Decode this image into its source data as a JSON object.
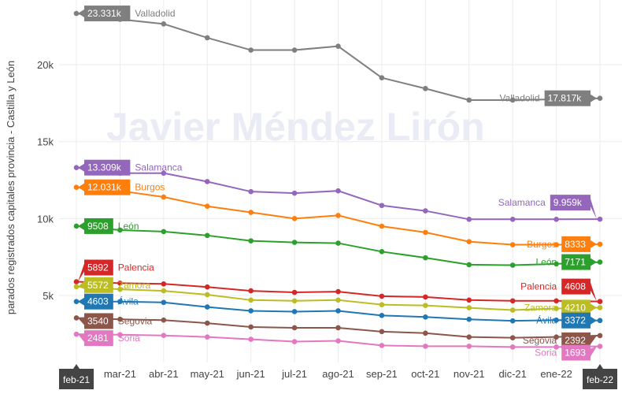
{
  "chart_data": {
    "type": "line",
    "ylabel": "parados registrados capitales provincia - Castilla y León",
    "watermark": "Javier Méndez Lirón",
    "x": [
      "feb-21",
      "mar-21",
      "abr-21",
      "may-21",
      "jun-21",
      "jul-21",
      "ago-21",
      "sep-21",
      "oct-21",
      "nov-21",
      "dic-21",
      "ene-22",
      "feb-22"
    ],
    "x_ticks_visible": [
      "mar-21",
      "abr-21",
      "may-21",
      "jun-21",
      "jul-21",
      "ago-21",
      "sep-21",
      "oct-21",
      "nov-21",
      "dic-21",
      "ene-22"
    ],
    "x_boxed": [
      "feb-21",
      "feb-22"
    ],
    "yticks": [
      5000,
      10000,
      15000,
      20000
    ],
    "ytick_labels": [
      "5k",
      "10k",
      "15k",
      "20k"
    ],
    "ylim": [
      900,
      24000
    ],
    "grid": true,
    "legend": "none",
    "series": [
      {
        "name": "Valladolid",
        "color": "#7f7f7f",
        "values": [
          23331,
          22950,
          22650,
          21750,
          20950,
          20950,
          21200,
          19150,
          18450,
          17700,
          17700,
          17750,
          17817
        ],
        "start_label": "23.331k",
        "end_label": "17.817k"
      },
      {
        "name": "Salamanca",
        "color": "#9467bd",
        "values": [
          13309,
          12950,
          12950,
          12400,
          11750,
          11650,
          11800,
          10850,
          10500,
          9950,
          9950,
          9950,
          9959
        ],
        "start_label": "13.309k",
        "end_label": "9.959k"
      },
      {
        "name": "Burgos",
        "color": "#ff7f0e",
        "values": [
          12031,
          11800,
          11400,
          10800,
          10400,
          10000,
          10200,
          9500,
          9100,
          8500,
          8300,
          8300,
          8333
        ],
        "start_label": "12.031k",
        "end_label": "8333"
      },
      {
        "name": "León",
        "color": "#2ca02c",
        "values": [
          9508,
          9250,
          9150,
          8900,
          8550,
          8450,
          8400,
          7850,
          7450,
          7000,
          6970,
          7050,
          7171
        ],
        "start_label": "9508",
        "end_label": "7171"
      },
      {
        "name": "Palencia",
        "color": "#d62728",
        "values": [
          5892,
          5800,
          5750,
          5550,
          5300,
          5200,
          5250,
          4950,
          4900,
          4700,
          4650,
          4650,
          4608
        ],
        "start_label": "5892",
        "end_label": "4608"
      },
      {
        "name": "Zamora",
        "color": "#bcbd22",
        "values": [
          5572,
          5400,
          5300,
          5050,
          4700,
          4650,
          4700,
          4400,
          4350,
          4200,
          4050,
          4150,
          4210
        ],
        "start_label": "5572",
        "end_label": "4210"
      },
      {
        "name": "Ávila",
        "color": "#1f77b4",
        "values": [
          4603,
          4600,
          4550,
          4250,
          4000,
          3950,
          4000,
          3700,
          3600,
          3450,
          3350,
          3400,
          3372
        ],
        "start_label": "4603",
        "end_label": "3372"
      },
      {
        "name": "Segovia",
        "color": "#8c564b",
        "values": [
          3540,
          3450,
          3400,
          3200,
          2950,
          2900,
          2900,
          2650,
          2550,
          2300,
          2250,
          2300,
          2392
        ],
        "start_label": "3540",
        "end_label": "2392"
      },
      {
        "name": "Soria",
        "color": "#e377c2",
        "values": [
          2481,
          2450,
          2400,
          2300,
          2150,
          2000,
          2050,
          1750,
          1700,
          1700,
          1650,
          1650,
          1693
        ],
        "start_label": "2481",
        "end_label": "1693"
      }
    ]
  }
}
